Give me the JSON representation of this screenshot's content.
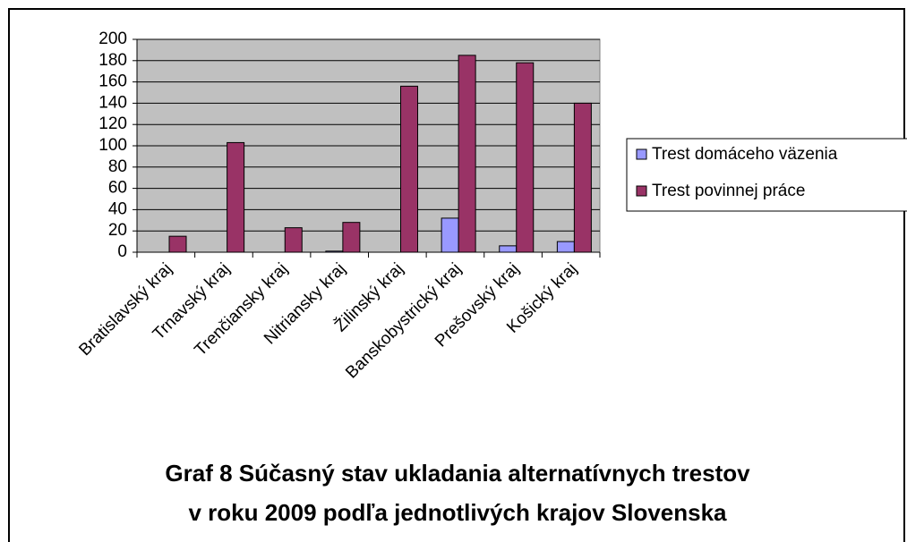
{
  "chart_data": {
    "type": "bar",
    "title": "Graf 8 Súčasný stav ukladania alternatívnych trestov",
    "subtitle": "v roku 2009 podľa jednotlivých krajov Slovenska",
    "categories": [
      "Bratislavský kraj",
      "Trnavský kraj",
      "Trenčiansky kraj",
      "Nitriansky kraj",
      "Žilinský kraj",
      "Banskobystrický kraj",
      "Prešovský kraj",
      "Košický kraj"
    ],
    "series": [
      {
        "name": "Trest domáceho väzenia",
        "color": "#9999ff",
        "values": [
          0,
          0,
          0,
          1,
          0,
          32,
          6,
          10
        ]
      },
      {
        "name": "Trest povinnej práce",
        "color": "#993366",
        "values": [
          15,
          103,
          23,
          28,
          156,
          185,
          178,
          140
        ]
      }
    ],
    "ylim": [
      0,
      200
    ],
    "yticks": [
      0,
      20,
      40,
      60,
      80,
      100,
      120,
      140,
      160,
      180,
      200
    ],
    "grid": true,
    "legend": "right"
  }
}
